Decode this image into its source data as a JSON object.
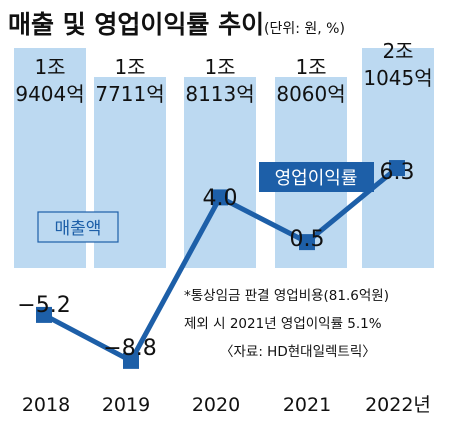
{
  "title": "매출 및 영업이익률 추이",
  "unit_note": "(단위: 원, %)",
  "colors": {
    "bar": "#bcd9f1",
    "line": "#1d5fa8",
    "text": "#111111",
    "label_box": "#1d5fa8"
  },
  "chart_data": [
    {
      "type": "bar",
      "series_name": "매출액",
      "categories": [
        "2018",
        "2019",
        "2020",
        "2021",
        "2022년"
      ],
      "values": [
        19404,
        17711,
        18113,
        18060,
        21045
      ],
      "value_unit": "억원",
      "labels": [
        [
          "1조",
          "9404억"
        ],
        [
          "1조",
          "7711억"
        ],
        [
          "1조",
          "8113억"
        ],
        [
          "1조",
          "8060억"
        ],
        [
          "2조",
          "1045억"
        ]
      ]
    },
    {
      "type": "line",
      "series_name": "영업이익률",
      "categories": [
        "2018",
        "2019",
        "2020",
        "2021",
        "2022년"
      ],
      "values": [
        -5.2,
        -8.8,
        4.0,
        0.5,
        6.3
      ],
      "value_unit": "%",
      "labels": [
        "−5.2",
        "−8.8",
        "4.0",
        "0.5",
        "6.3"
      ]
    }
  ],
  "annotation": {
    "line1": "*통상임금 판결 영업비용(81.6억원)",
    "line2": "제외 시 2021년 영업이익률 5.1%"
  },
  "source": "〈자료: HD현대일렉트릭〉"
}
